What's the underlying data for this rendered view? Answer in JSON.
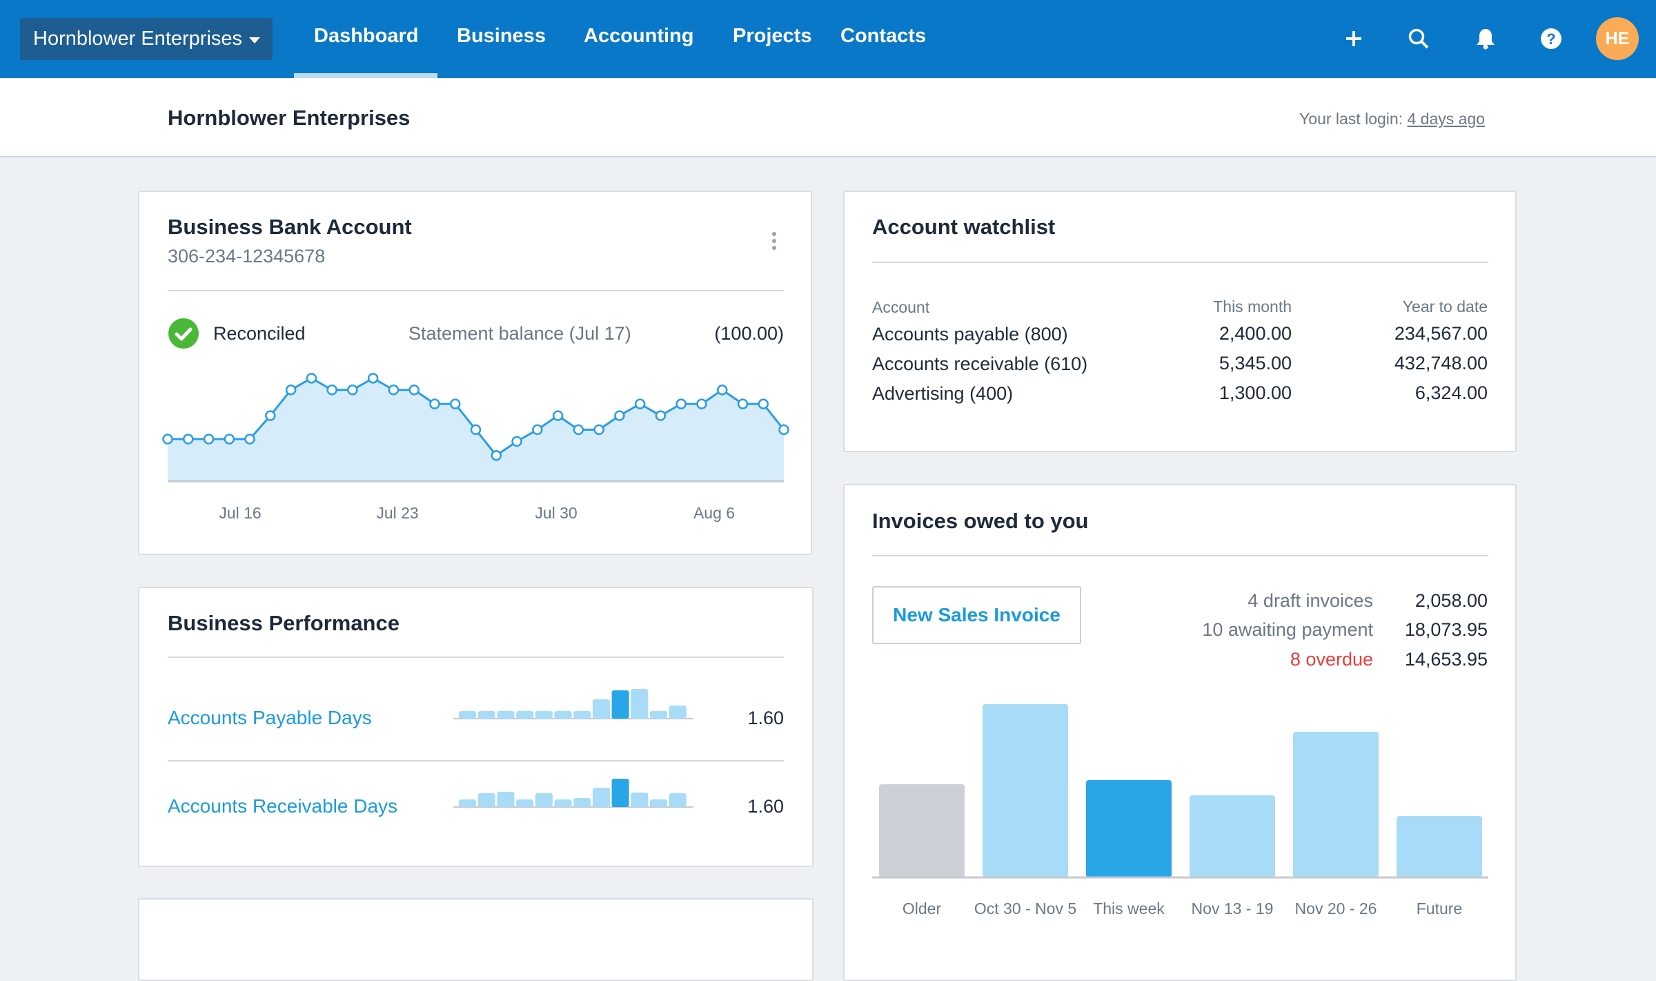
{
  "nav": {
    "org_name": "Hornblower Enterprises",
    "items": [
      {
        "label": "Dashboard",
        "active": true
      },
      {
        "label": "Business"
      },
      {
        "label": "Accounting"
      },
      {
        "label": "Projects"
      },
      {
        "label": "Contacts"
      }
    ],
    "icons": [
      "plus-icon",
      "search-icon",
      "bell-icon",
      "help-icon"
    ],
    "avatar_initials": "HE",
    "colors": {
      "bar": "#0a78c9",
      "avatar": "#fbab55"
    }
  },
  "header": {
    "title": "Hornblower Enterprises",
    "last_login_label": "Your last login:",
    "last_login_value": "4 days ago"
  },
  "bank_account": {
    "title": "Business Bank Account",
    "number": "306-234-12345678",
    "status": "Reconciled",
    "statement_label": "Statement balance (Jul 17)",
    "statement_value": "(100.00)",
    "chart_data": {
      "type": "area",
      "x_tick_labels": [
        "Jul 16",
        "Jul 23",
        "Jul 30",
        "Aug 6"
      ],
      "values": [
        18,
        18,
        18,
        18,
        18,
        28,
        39,
        44,
        39,
        39,
        44,
        39,
        39,
        33,
        33,
        22,
        11,
        17,
        22,
        28,
        22,
        22,
        28,
        33,
        28,
        33,
        33,
        39,
        33,
        33,
        22
      ],
      "color": "#2a9de6",
      "fill": "#d6ecfa",
      "grid": false
    }
  },
  "performance": {
    "title": "Business Performance",
    "rows": [
      {
        "label": "Accounts Payable Days",
        "value": "1.60",
        "bars": [
          11,
          11,
          11,
          11,
          11,
          11,
          11,
          28,
          41,
          43,
          11,
          19
        ],
        "highlight": 8
      },
      {
        "label": "Accounts Receivable Days",
        "value": "1.60",
        "bars": [
          11,
          20,
          22,
          11,
          20,
          11,
          13,
          28,
          41,
          21,
          11,
          20
        ],
        "highlight": 8
      }
    ]
  },
  "watchlist": {
    "title": "Account watchlist",
    "columns": [
      "Account",
      "This month",
      "Year to date"
    ],
    "rows": [
      [
        "Accounts payable (800)",
        "2,400.00",
        "234,567.00"
      ],
      [
        "Accounts receivable (610)",
        "5,345.00",
        "432,748.00"
      ],
      [
        "Advertising (400)",
        "1,300.00",
        "6,324.00"
      ]
    ]
  },
  "invoices": {
    "title": "Invoices owed to you",
    "new_button": "New Sales Invoice",
    "stats": [
      {
        "label": "4 draft invoices",
        "value": "2,058.00",
        "color": "#6b7785"
      },
      {
        "label": "10 awaiting payment",
        "value": "18,073.95",
        "color": "#6b7785"
      },
      {
        "label": "8 overdue",
        "value": "14,653.95",
        "color": "#ee3b3b"
      }
    ],
    "chart_data": {
      "type": "bar",
      "categories": [
        "Older",
        "Oct 30 - Nov 5",
        "This week",
        "Nov 13 - 19",
        "Nov 20 - 26",
        "Future"
      ],
      "values": [
        135,
        251,
        141,
        119,
        211,
        89
      ],
      "colors": [
        "#ccd1d8",
        "#a8dbf7",
        "#29a6e8",
        "#a8dbf7",
        "#a8dbf7",
        "#a8dbf7"
      ],
      "grid": false
    }
  }
}
